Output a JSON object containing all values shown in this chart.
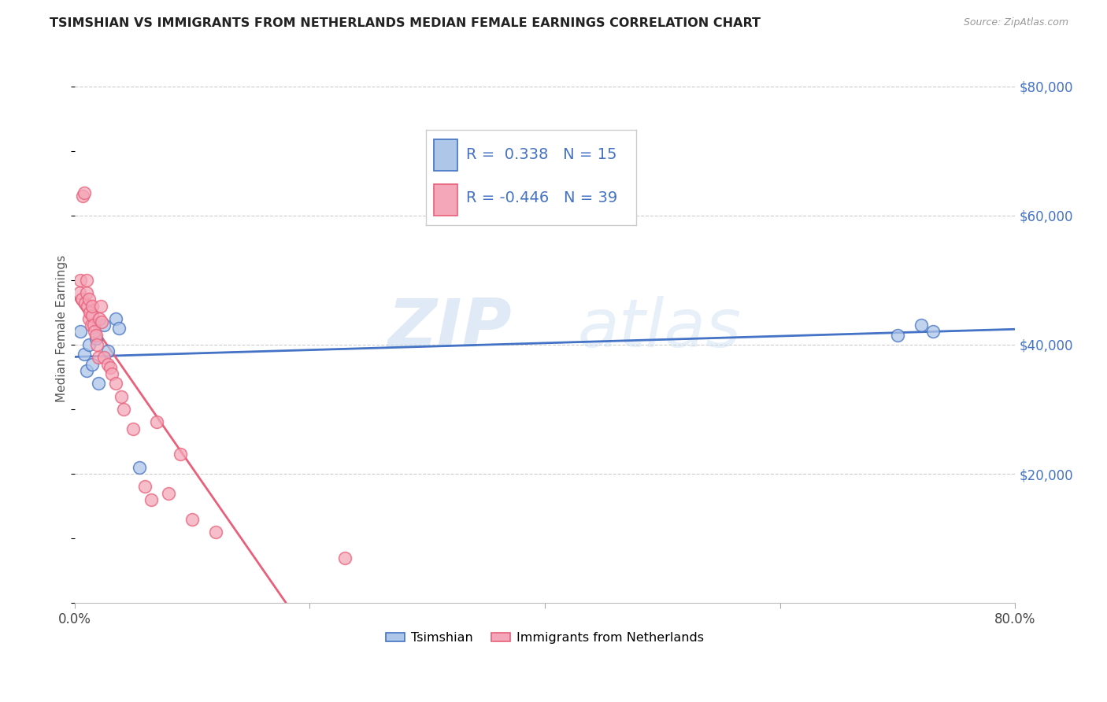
{
  "title": "TSIMSHIAN VS IMMIGRANTS FROM NETHERLANDS MEDIAN FEMALE EARNINGS CORRELATION CHART",
  "source": "Source: ZipAtlas.com",
  "ylabel": "Median Female Earnings",
  "xmin": 0.0,
  "xmax": 0.8,
  "ymin": 0,
  "ymax": 85000,
  "yticks": [
    0,
    20000,
    40000,
    60000,
    80000
  ],
  "ytick_labels": [
    "",
    "$20,000",
    "$40,000",
    "$60,000",
    "$80,000"
  ],
  "xticks": [
    0.0,
    0.2,
    0.4,
    0.6,
    0.8
  ],
  "xtick_labels": [
    "0.0%",
    "",
    "",
    "",
    "80.0%"
  ],
  "watermark_zip": "ZIP",
  "watermark_atlas": "atlas",
  "legend_bottom": [
    "Tsimshian",
    "Immigrants from Netherlands"
  ],
  "series1_color": "#aec6e8",
  "series2_color": "#f4a7b9",
  "line1_color": "#4472c4",
  "line2_color": "#e8607a",
  "R1": 0.338,
  "N1": 15,
  "R2": -0.446,
  "N2": 39,
  "tsimshian_x": [
    0.005,
    0.008,
    0.01,
    0.012,
    0.015,
    0.018,
    0.02,
    0.025,
    0.028,
    0.035,
    0.038,
    0.055,
    0.7,
    0.72,
    0.73
  ],
  "tsimshian_y": [
    42000,
    38500,
    36000,
    40000,
    37000,
    41000,
    34000,
    43000,
    39000,
    44000,
    42500,
    21000,
    41500,
    43000,
    42000
  ],
  "netherlands_x": [
    0.004,
    0.005,
    0.006,
    0.007,
    0.008,
    0.009,
    0.01,
    0.01,
    0.011,
    0.012,
    0.012,
    0.013,
    0.014,
    0.015,
    0.015,
    0.016,
    0.017,
    0.018,
    0.019,
    0.02,
    0.021,
    0.022,
    0.023,
    0.025,
    0.028,
    0.03,
    0.032,
    0.035,
    0.04,
    0.042,
    0.05,
    0.06,
    0.065,
    0.07,
    0.08,
    0.09,
    0.1,
    0.12,
    0.23
  ],
  "netherlands_y": [
    48000,
    50000,
    47000,
    63000,
    63500,
    46500,
    48000,
    50000,
    46000,
    47000,
    44000,
    45000,
    43000,
    44500,
    46000,
    43000,
    42000,
    41500,
    40000,
    38000,
    44000,
    46000,
    43500,
    38000,
    37000,
    36500,
    35500,
    34000,
    32000,
    30000,
    27000,
    18000,
    16000,
    28000,
    17000,
    23000,
    13000,
    11000,
    7000
  ],
  "line2_xmin": 0.0,
  "line2_xmax": 0.3
}
